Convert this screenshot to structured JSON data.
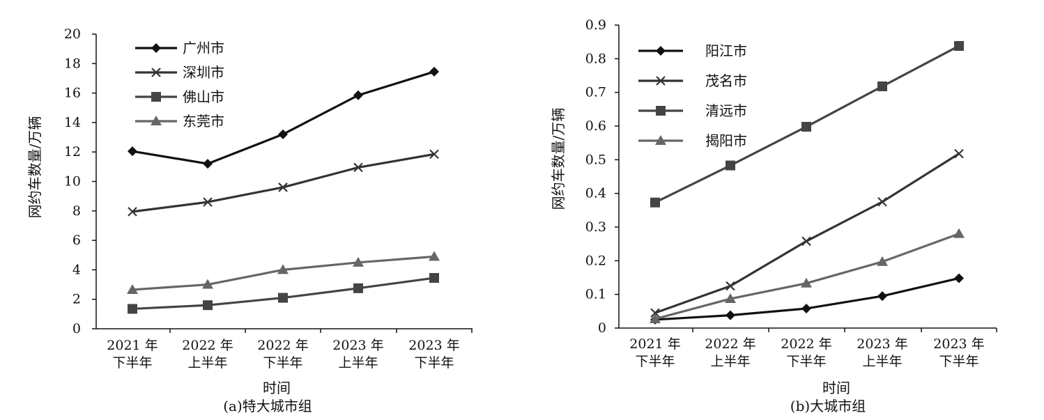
{
  "chart_data": [
    {
      "type": "line",
      "id": "a",
      "caption": "(a)特大城市组",
      "xlabel": "时间",
      "ylabel": "网约车数量/万辆",
      "categories": [
        [
          "2021 年",
          "下半年"
        ],
        [
          "2022 年",
          "上半年"
        ],
        [
          "2022 年",
          "下半年"
        ],
        [
          "2023 年",
          "上半年"
        ],
        [
          "2023 年",
          "下半年"
        ]
      ],
      "ylim": [
        0,
        20
      ],
      "yticks": [
        "0",
        "2",
        "4",
        "6",
        "8",
        "10",
        "12",
        "14",
        "16",
        "18",
        "20"
      ],
      "grid": false,
      "legend_position": "top-left",
      "series": [
        {
          "name": "广州市",
          "marker": "diamond",
          "color": "#111111",
          "values": [
            12.05,
            11.2,
            13.2,
            15.85,
            17.45
          ]
        },
        {
          "name": "深圳市",
          "marker": "x",
          "color": "#333333",
          "values": [
            7.95,
            8.6,
            9.6,
            10.95,
            11.85
          ]
        },
        {
          "name": "佛山市",
          "marker": "square",
          "color": "#444444",
          "values": [
            1.35,
            1.6,
            2.1,
            2.75,
            3.45
          ]
        },
        {
          "name": "东莞市",
          "marker": "triangle",
          "color": "#666666",
          "values": [
            2.65,
            3.0,
            4.0,
            4.5,
            4.9
          ]
        }
      ]
    },
    {
      "type": "line",
      "id": "b",
      "caption": "(b)大城市组",
      "xlabel": "时间",
      "ylabel": "网约车数量/万辆",
      "categories": [
        [
          "2021 年",
          "下半年"
        ],
        [
          "2022 年",
          "上半年"
        ],
        [
          "2022 年",
          "下半年"
        ],
        [
          "2023 年",
          "上半年"
        ],
        [
          "2023 年",
          "下半年"
        ]
      ],
      "ylim": [
        0,
        0.9
      ],
      "yticks": [
        "0",
        "0.1",
        "0.2",
        "0.3",
        "0.4",
        "0.5",
        "0.6",
        "0.7",
        "0.8",
        "0.9"
      ],
      "grid": false,
      "legend_position": "top-left",
      "series": [
        {
          "name": "阳江市",
          "marker": "diamond",
          "color": "#111111",
          "values": [
            0.025,
            0.038,
            0.058,
            0.095,
            0.148
          ]
        },
        {
          "name": "茂名市",
          "marker": "x",
          "color": "#333333",
          "values": [
            0.045,
            0.125,
            0.258,
            0.375,
            0.518
          ]
        },
        {
          "name": "清远市",
          "marker": "square",
          "color": "#444444",
          "values": [
            0.373,
            0.483,
            0.598,
            0.718,
            0.838
          ]
        },
        {
          "name": "揭阳市",
          "marker": "triangle",
          "color": "#666666",
          "values": [
            0.027,
            0.087,
            0.133,
            0.197,
            0.28
          ]
        }
      ]
    }
  ]
}
